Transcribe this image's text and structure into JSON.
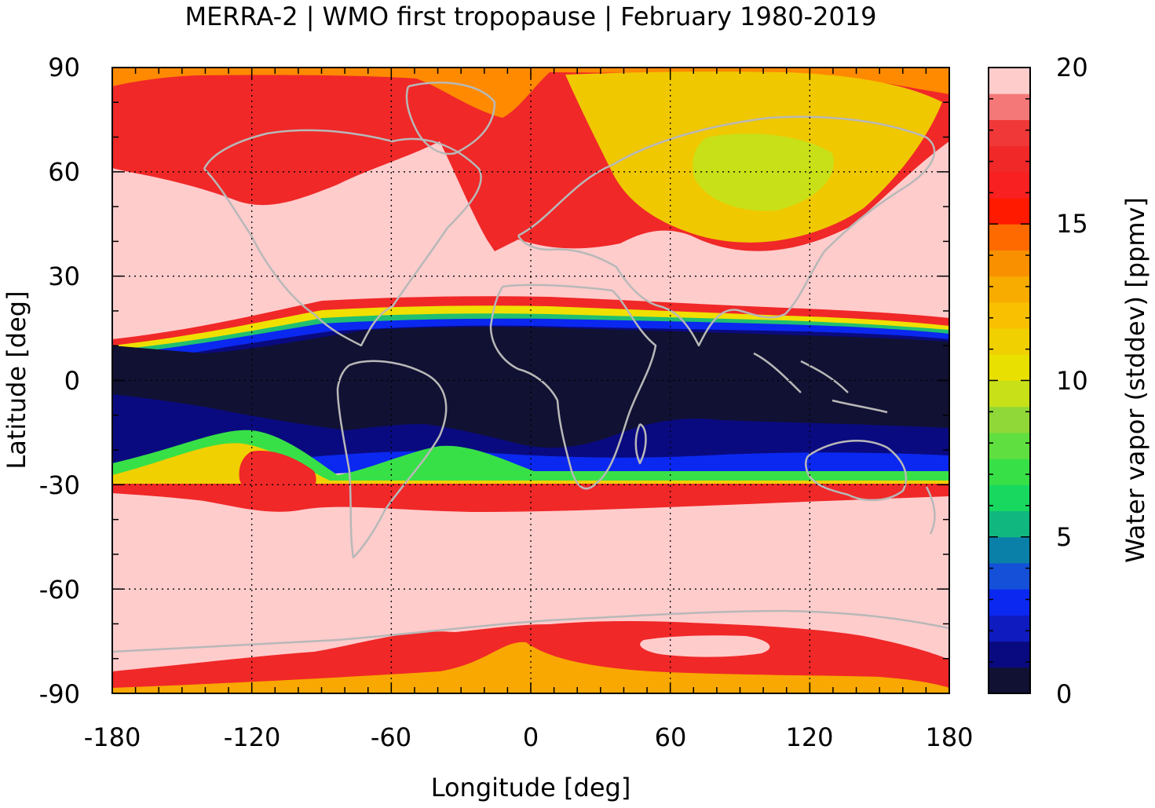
{
  "chart_data": {
    "type": "heatmap",
    "title": "MERRA-2 | WMO first tropopause | February 1980-2019",
    "xlabel": "Longitude [deg]",
    "ylabel": "Latitude [deg]",
    "xlim": [
      -180,
      180
    ],
    "ylim": [
      -90,
      90
    ],
    "x_ticks": [
      "-180",
      "-120",
      "-60",
      "0",
      "60",
      "120",
      "180"
    ],
    "y_ticks": [
      "90",
      "60",
      "30",
      "0",
      "-30",
      "-60",
      "-90"
    ],
    "grid": "dotted, every 60 deg longitude and 30 deg latitude",
    "coastlines": "grey overlay",
    "colorbar": {
      "label": "Water vapor (stddev) [ppmv]",
      "ticks": [
        "20",
        "15",
        "10",
        "5",
        "0"
      ],
      "range": [
        0,
        20
      ],
      "levels": [
        "#111133",
        "#0a0a80",
        "#0f1bbf",
        "#0a28f0",
        "#1450d8",
        "#0a80a8",
        "#10b880",
        "#18d860",
        "#38e048",
        "#60e040",
        "#90d838",
        "#c8e018",
        "#e8e000",
        "#f0d000",
        "#f8c000",
        "#f8ac00",
        "#f89000",
        "#ff6a00",
        "#ff1a00",
        "#f82020",
        "#f02828",
        "#f03838",
        "#f47878",
        "#ffcccc"
      ]
    },
    "zonal_pattern": [
      {
        "latitude": [
          -90,
          -80
        ],
        "value_ppmv": "14-18 (orange/red)"
      },
      {
        "latitude": [
          -80,
          -35
        ],
        "value_ppmv": ">= 20 (pink)"
      },
      {
        "latitude": [
          -35,
          -28
        ],
        "value_ppmv": "10-18 (sharp gradient)"
      },
      {
        "latitude": [
          -28,
          15
        ],
        "value_ppmv": "0-5 (dark blue)"
      },
      {
        "latitude": [
          15,
          25
        ],
        "value_ppmv": "5-18 (sharp gradient)"
      },
      {
        "latitude": [
          25,
          60
        ],
        "value_ppmv": ">= 20 (pink), except 10-13 over Siberia"
      },
      {
        "latitude": [
          60,
          90
        ],
        "value_ppmv": "12-18 (orange/red)"
      }
    ]
  }
}
